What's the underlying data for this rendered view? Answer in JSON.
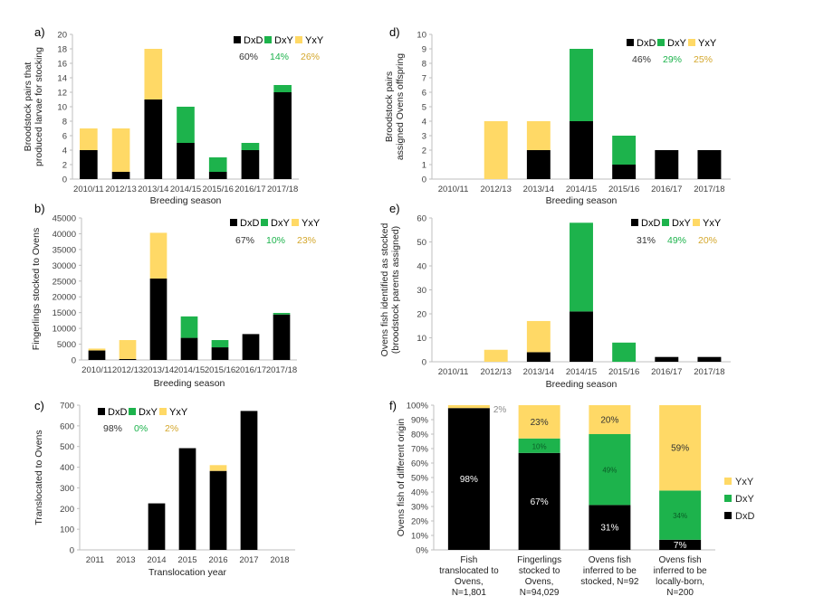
{
  "colors": {
    "DxD": "#000000",
    "DxY": "#1db34c",
    "YxY": "#ffd966",
    "axis": "#bfbfbf",
    "text": "#404040"
  },
  "chart_data": [
    {
      "id": "a",
      "panel_label": "a)",
      "type": "bar",
      "stacked": true,
      "ylabel": [
        "Broodstock pairs that",
        "produced larvae for stocking"
      ],
      "xlabel": "Breeding season",
      "ylim": [
        0,
        20
      ],
      "yticks": [
        0,
        2,
        4,
        6,
        8,
        10,
        12,
        14,
        16,
        18,
        20
      ],
      "categories": [
        "2010/11",
        "2012/13",
        "2013/14",
        "2014/15",
        "2015/16",
        "2016/17",
        "2017/18"
      ],
      "series": [
        {
          "name": "DxD",
          "values": [
            4,
            1,
            11,
            5,
            1,
            4,
            12
          ]
        },
        {
          "name": "DxY",
          "values": [
            0,
            0,
            0,
            5,
            2,
            1,
            1
          ]
        },
        {
          "name": "YxY",
          "values": [
            3,
            6,
            7,
            0,
            0,
            0,
            0
          ]
        }
      ],
      "legend_pct": [
        "60%",
        "14%",
        "26%"
      ],
      "legend": "top-right"
    },
    {
      "id": "b",
      "panel_label": "b)",
      "type": "bar",
      "stacked": true,
      "ylabel": [
        "Fingerlings stocked to Ovens"
      ],
      "xlabel": "Breeding season",
      "ylim": [
        0,
        45000
      ],
      "yticks": [
        0,
        5000,
        10000,
        15000,
        20000,
        25000,
        30000,
        35000,
        40000,
        45000
      ],
      "categories": [
        "2010/11",
        "2012/13",
        "2013/14",
        "2014/15",
        "2015/16",
        "2016/17",
        "2017/18"
      ],
      "series": [
        {
          "name": "DxD",
          "values": [
            3000,
            300,
            25800,
            7000,
            4000,
            8200,
            14400
          ]
        },
        {
          "name": "DxY",
          "values": [
            0,
            0,
            0,
            6800,
            2300,
            0,
            500
          ]
        },
        {
          "name": "YxY",
          "values": [
            600,
            6000,
            14500,
            0,
            0,
            0,
            0
          ]
        }
      ],
      "legend_pct": [
        "67%",
        "10%",
        "23%"
      ],
      "legend": "top-right"
    },
    {
      "id": "c",
      "panel_label": "c)",
      "type": "bar",
      "stacked": true,
      "ylabel": [
        "Translocated to Ovens"
      ],
      "xlabel": "Translocation year",
      "ylim": [
        0,
        700
      ],
      "yticks": [
        0,
        100,
        200,
        300,
        400,
        500,
        600,
        700
      ],
      "categories": [
        "2011",
        "2013",
        "2014",
        "2015",
        "2016",
        "2017",
        "2018"
      ],
      "series": [
        {
          "name": "DxD",
          "values": [
            0,
            0,
            225,
            492,
            382,
            672,
            0
          ]
        },
        {
          "name": "DxY",
          "values": [
            0,
            0,
            0,
            0,
            0,
            0,
            0
          ]
        },
        {
          "name": "YxY",
          "values": [
            0,
            0,
            0,
            0,
            28,
            0,
            0
          ]
        }
      ],
      "legend_pct": [
        "98%",
        "0%",
        "2%"
      ],
      "legend": "top-left"
    },
    {
      "id": "d",
      "panel_label": "d)",
      "type": "bar",
      "stacked": true,
      "ylabel": [
        "Broodstock pairs",
        "assigned Ovens offspring"
      ],
      "xlabel": "Breeding season",
      "ylim": [
        0,
        10
      ],
      "yticks": [
        0,
        1,
        2,
        3,
        4,
        5,
        6,
        7,
        8,
        9,
        10
      ],
      "categories": [
        "2010/11",
        "2012/13",
        "2013/14",
        "2014/15",
        "2015/16",
        "2016/17",
        "2017/18"
      ],
      "series": [
        {
          "name": "DxD",
          "values": [
            0,
            0,
            2,
            4,
            1,
            2,
            2
          ]
        },
        {
          "name": "DxY",
          "values": [
            0,
            0,
            0,
            5,
            2,
            0,
            0
          ]
        },
        {
          "name": "YxY",
          "values": [
            0,
            4,
            2,
            0,
            0,
            0,
            0
          ]
        }
      ],
      "legend_pct": [
        "46%",
        "29%",
        "25%"
      ],
      "legend": "top-right"
    },
    {
      "id": "e",
      "panel_label": "e)",
      "type": "bar",
      "stacked": true,
      "ylabel": [
        "Ovens fish identified as stocked",
        "(broodstock parents assigned)"
      ],
      "xlabel": "Breeding season",
      "ylim": [
        0,
        60
      ],
      "yticks": [
        0,
        10,
        20,
        30,
        40,
        50,
        60
      ],
      "categories": [
        "2010/11",
        "2012/13",
        "2013/14",
        "2014/15",
        "2015/16",
        "2016/17",
        "2017/18"
      ],
      "series": [
        {
          "name": "DxD",
          "values": [
            0,
            0,
            4,
            21,
            0,
            2,
            2
          ]
        },
        {
          "name": "DxY",
          "values": [
            0,
            0,
            0,
            37,
            8,
            0,
            0
          ]
        },
        {
          "name": "YxY",
          "values": [
            0,
            5,
            13,
            0,
            0,
            0,
            0
          ]
        }
      ],
      "legend_pct": [
        "31%",
        "49%",
        "20%"
      ],
      "legend": "top-right"
    },
    {
      "id": "f",
      "panel_label": "f)",
      "type": "bar",
      "stacked": true,
      "percent": true,
      "ylabel": [
        "Ovens fish of different origin"
      ],
      "xlabel": "",
      "ylim": [
        0,
        100
      ],
      "yticks": [
        "0%",
        "10%",
        "20%",
        "30%",
        "40%",
        "50%",
        "60%",
        "70%",
        "80%",
        "90%",
        "100%"
      ],
      "categories": [
        [
          "Fish",
          "translocated to",
          "Ovens,",
          "N=1,801"
        ],
        [
          "Fingerlings",
          "stocked to",
          "Ovens,",
          "N=94,029"
        ],
        [
          "Ovens fish",
          "inferred to be",
          "stocked, N=92"
        ],
        [
          "Ovens fish",
          "inferred to be",
          "locally-born,",
          "N=200"
        ]
      ],
      "series": [
        {
          "name": "DxD",
          "values": [
            98,
            67,
            31,
            7
          ]
        },
        {
          "name": "DxY",
          "values": [
            0,
            10,
            49,
            34
          ]
        },
        {
          "name": "YxY",
          "values": [
            2,
            23,
            20,
            59
          ]
        }
      ],
      "data_labels": {
        "DxD": [
          "98%",
          "67%",
          "31%",
          "7%"
        ],
        "DxY": [
          "",
          "10%",
          "49%",
          "34%"
        ],
        "YxY": [
          "2%",
          "23%",
          "20%",
          "59%"
        ]
      },
      "legend": "right",
      "legend_order": [
        "YxY",
        "DxY",
        "DxD"
      ]
    }
  ]
}
